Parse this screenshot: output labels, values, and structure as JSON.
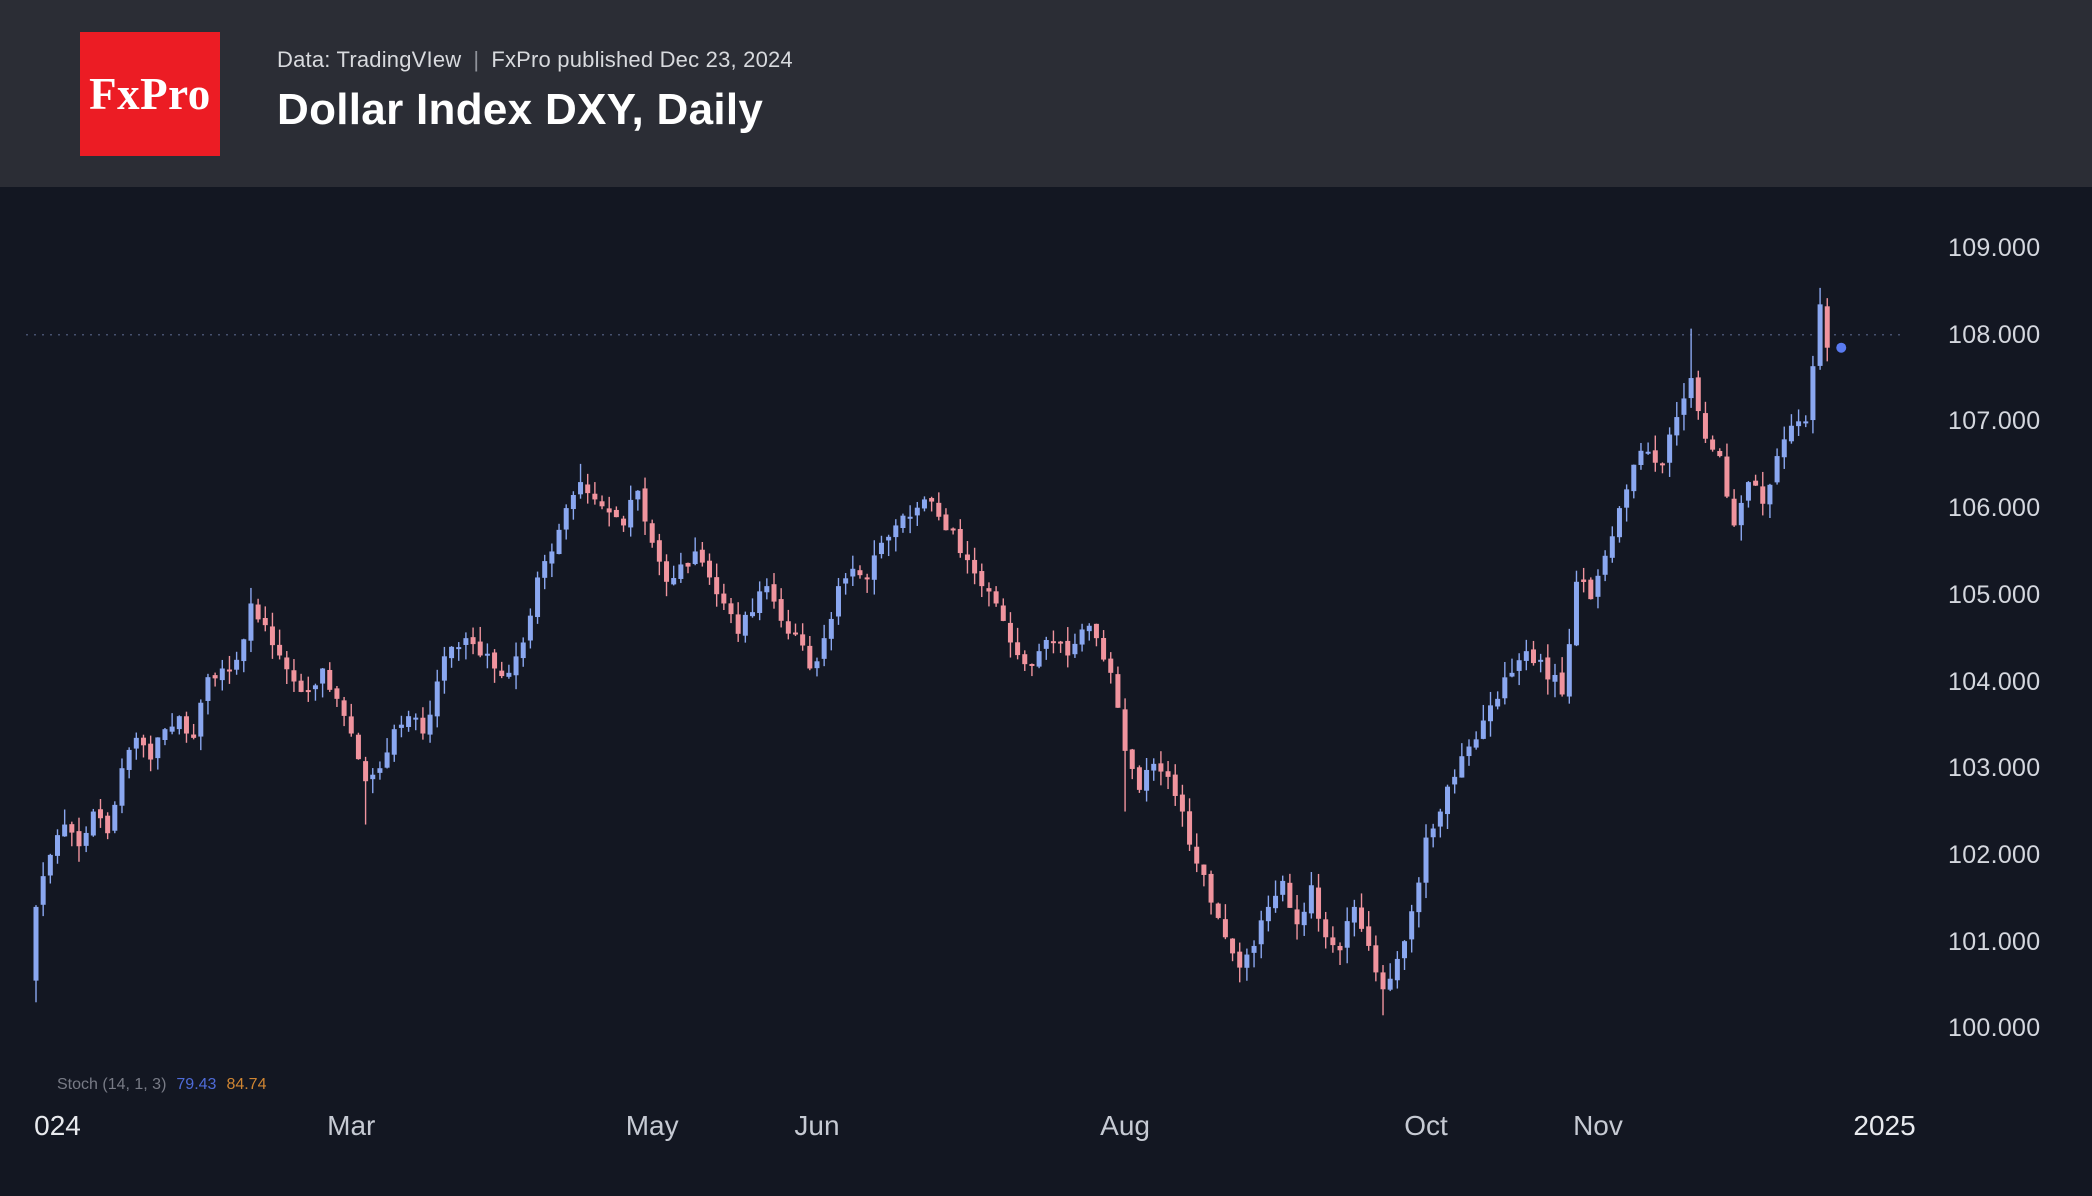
{
  "header": {
    "logo_text": "FxPro",
    "source_line": {
      "data_label": "Data: TradingVIew",
      "divider": "|",
      "published": "FxPro published Dec 23, 2024"
    },
    "title": "Dollar Index DXY, Daily"
  },
  "indicator": {
    "label": "Stoch (14, 1, 3)",
    "k_value": "79.43",
    "d_value": "84.74"
  },
  "colors": {
    "header_bg": "#2b2d35",
    "chart_bg": "#131722",
    "logo_red": "#ec1c24",
    "up": "#8aa7f0",
    "down": "#f0949e",
    "axis_text": "#d4d7de",
    "time_text": "#c6cad3",
    "year_text": "#e8eaee",
    "title_text": "#ffffff",
    "subtitle_text": "#d8dade",
    "divider_text": "#8f929a",
    "dotted_line": "#46506e",
    "last_dot": "#5a7bf0",
    "stoch_label": "#787b86",
    "stoch_k": "#4e6bd8",
    "stoch_d": "#cf8532"
  },
  "chart_data": {
    "type": "candlestick",
    "title": "Dollar Index DXY, Daily",
    "symbol": "DXY",
    "timeframe": "Daily",
    "grid": "off",
    "legend_position": "none",
    "y_axis": {
      "min": 100,
      "max": 109,
      "ticks": [
        {
          "value": 109,
          "label": "109.000"
        },
        {
          "value": 108,
          "label": "108.000"
        },
        {
          "value": 107,
          "label": "107.000"
        },
        {
          "value": 106,
          "label": "106.000"
        },
        {
          "value": 105,
          "label": "105.000"
        },
        {
          "value": 104,
          "label": "104.000"
        },
        {
          "value": 103,
          "label": "103.000"
        },
        {
          "value": 102,
          "label": "102.000"
        },
        {
          "value": 101,
          "label": "101.000"
        },
        {
          "value": 100,
          "label": "100.000"
        }
      ]
    },
    "x_axis": {
      "ticks": [
        {
          "label": "024",
          "day": 3,
          "is_year": true
        },
        {
          "label": "Mar",
          "day": 44,
          "is_year": false
        },
        {
          "label": "May",
          "day": 86,
          "is_year": false
        },
        {
          "label": "Jun",
          "day": 109,
          "is_year": false
        },
        {
          "label": "Aug",
          "day": 152,
          "is_year": false
        },
        {
          "label": "Oct",
          "day": 194,
          "is_year": false
        },
        {
          "label": "Nov",
          "day": 218,
          "is_year": false
        },
        {
          "label": "2025",
          "day": 258,
          "is_year": true
        }
      ]
    },
    "dotted_level": 108.0,
    "first_open": 100.55,
    "last_close": 107.85,
    "spikes": [
      {
        "day": 0,
        "low": 100.3
      },
      {
        "day": 46,
        "low": 102.35
      },
      {
        "day": 76,
        "high": 106.51
      },
      {
        "day": 124,
        "high": 106.13
      },
      {
        "day": 152,
        "low": 102.5
      },
      {
        "day": 168,
        "low": 100.53
      },
      {
        "day": 188,
        "low": 100.15
      },
      {
        "day": 231,
        "high": 108.07
      },
      {
        "day": 249,
        "high": 108.54
      }
    ],
    "waypoints": [
      [
        0,
        101.4
      ],
      [
        2,
        102.0
      ],
      [
        4,
        102.35
      ],
      [
        6,
        102.1
      ],
      [
        8,
        102.5
      ],
      [
        10,
        102.25
      ],
      [
        12,
        103.0
      ],
      [
        14,
        103.35
      ],
      [
        16,
        103.1
      ],
      [
        18,
        103.45
      ],
      [
        20,
        103.6
      ],
      [
        22,
        103.35
      ],
      [
        24,
        104.05
      ],
      [
        26,
        104.15
      ],
      [
        28,
        104.25
      ],
      [
        30,
        104.9
      ],
      [
        32,
        104.65
      ],
      [
        34,
        104.3
      ],
      [
        36,
        104.0
      ],
      [
        38,
        103.9
      ],
      [
        40,
        104.15
      ],
      [
        42,
        103.8
      ],
      [
        44,
        103.4
      ],
      [
        46,
        102.85
      ],
      [
        48,
        103.0
      ],
      [
        50,
        103.45
      ],
      [
        52,
        103.6
      ],
      [
        54,
        103.4
      ],
      [
        56,
        104.0
      ],
      [
        58,
        104.4
      ],
      [
        60,
        104.5
      ],
      [
        62,
        104.3
      ],
      [
        64,
        104.15
      ],
      [
        66,
        104.1
      ],
      [
        68,
        104.45
      ],
      [
        70,
        105.2
      ],
      [
        72,
        105.5
      ],
      [
        74,
        106.0
      ],
      [
        76,
        106.3
      ],
      [
        78,
        106.1
      ],
      [
        80,
        105.95
      ],
      [
        82,
        105.8
      ],
      [
        84,
        106.2
      ],
      [
        86,
        105.6
      ],
      [
        88,
        105.15
      ],
      [
        90,
        105.35
      ],
      [
        92,
        105.5
      ],
      [
        94,
        105.2
      ],
      [
        96,
        104.9
      ],
      [
        98,
        104.55
      ],
      [
        100,
        104.8
      ],
      [
        102,
        105.1
      ],
      [
        104,
        104.7
      ],
      [
        106,
        104.55
      ],
      [
        108,
        104.15
      ],
      [
        110,
        104.5
      ],
      [
        112,
        105.1
      ],
      [
        114,
        105.3
      ],
      [
        116,
        105.2
      ],
      [
        118,
        105.6
      ],
      [
        120,
        105.8
      ],
      [
        122,
        105.9
      ],
      [
        124,
        106.1
      ],
      [
        126,
        105.9
      ],
      [
        128,
        105.75
      ],
      [
        130,
        105.4
      ],
      [
        132,
        105.1
      ],
      [
        134,
        104.9
      ],
      [
        136,
        104.45
      ],
      [
        138,
        104.2
      ],
      [
        140,
        104.35
      ],
      [
        142,
        104.45
      ],
      [
        144,
        104.3
      ],
      [
        146,
        104.6
      ],
      [
        148,
        104.5
      ],
      [
        150,
        104.1
      ],
      [
        152,
        103.2
      ],
      [
        154,
        102.75
      ],
      [
        156,
        103.05
      ],
      [
        158,
        102.9
      ],
      [
        160,
        102.5
      ],
      [
        162,
        101.9
      ],
      [
        164,
        101.45
      ],
      [
        166,
        101.05
      ],
      [
        168,
        100.7
      ],
      [
        170,
        100.95
      ],
      [
        172,
        101.4
      ],
      [
        174,
        101.7
      ],
      [
        176,
        101.2
      ],
      [
        178,
        101.65
      ],
      [
        180,
        101.05
      ],
      [
        182,
        100.9
      ],
      [
        184,
        101.4
      ],
      [
        186,
        100.95
      ],
      [
        188,
        100.45
      ],
      [
        190,
        100.8
      ],
      [
        192,
        101.35
      ],
      [
        194,
        102.2
      ],
      [
        196,
        102.5
      ],
      [
        198,
        102.9
      ],
      [
        200,
        103.25
      ],
      [
        202,
        103.55
      ],
      [
        204,
        103.8
      ],
      [
        206,
        104.1
      ],
      [
        208,
        104.35
      ],
      [
        210,
        104.25
      ],
      [
        213,
        103.85
      ],
      [
        215,
        105.15
      ],
      [
        217,
        104.95
      ],
      [
        219,
        105.45
      ],
      [
        221,
        106.0
      ],
      [
        223,
        106.5
      ],
      [
        225,
        106.65
      ],
      [
        227,
        106.5
      ],
      [
        229,
        107.05
      ],
      [
        231,
        107.5
      ],
      [
        233,
        106.8
      ],
      [
        235,
        106.6
      ],
      [
        237,
        105.8
      ],
      [
        239,
        106.3
      ],
      [
        241,
        106.05
      ],
      [
        243,
        106.6
      ],
      [
        245,
        106.95
      ],
      [
        247,
        107.0
      ],
      [
        249,
        108.35
      ],
      [
        250,
        107.85
      ]
    ]
  }
}
